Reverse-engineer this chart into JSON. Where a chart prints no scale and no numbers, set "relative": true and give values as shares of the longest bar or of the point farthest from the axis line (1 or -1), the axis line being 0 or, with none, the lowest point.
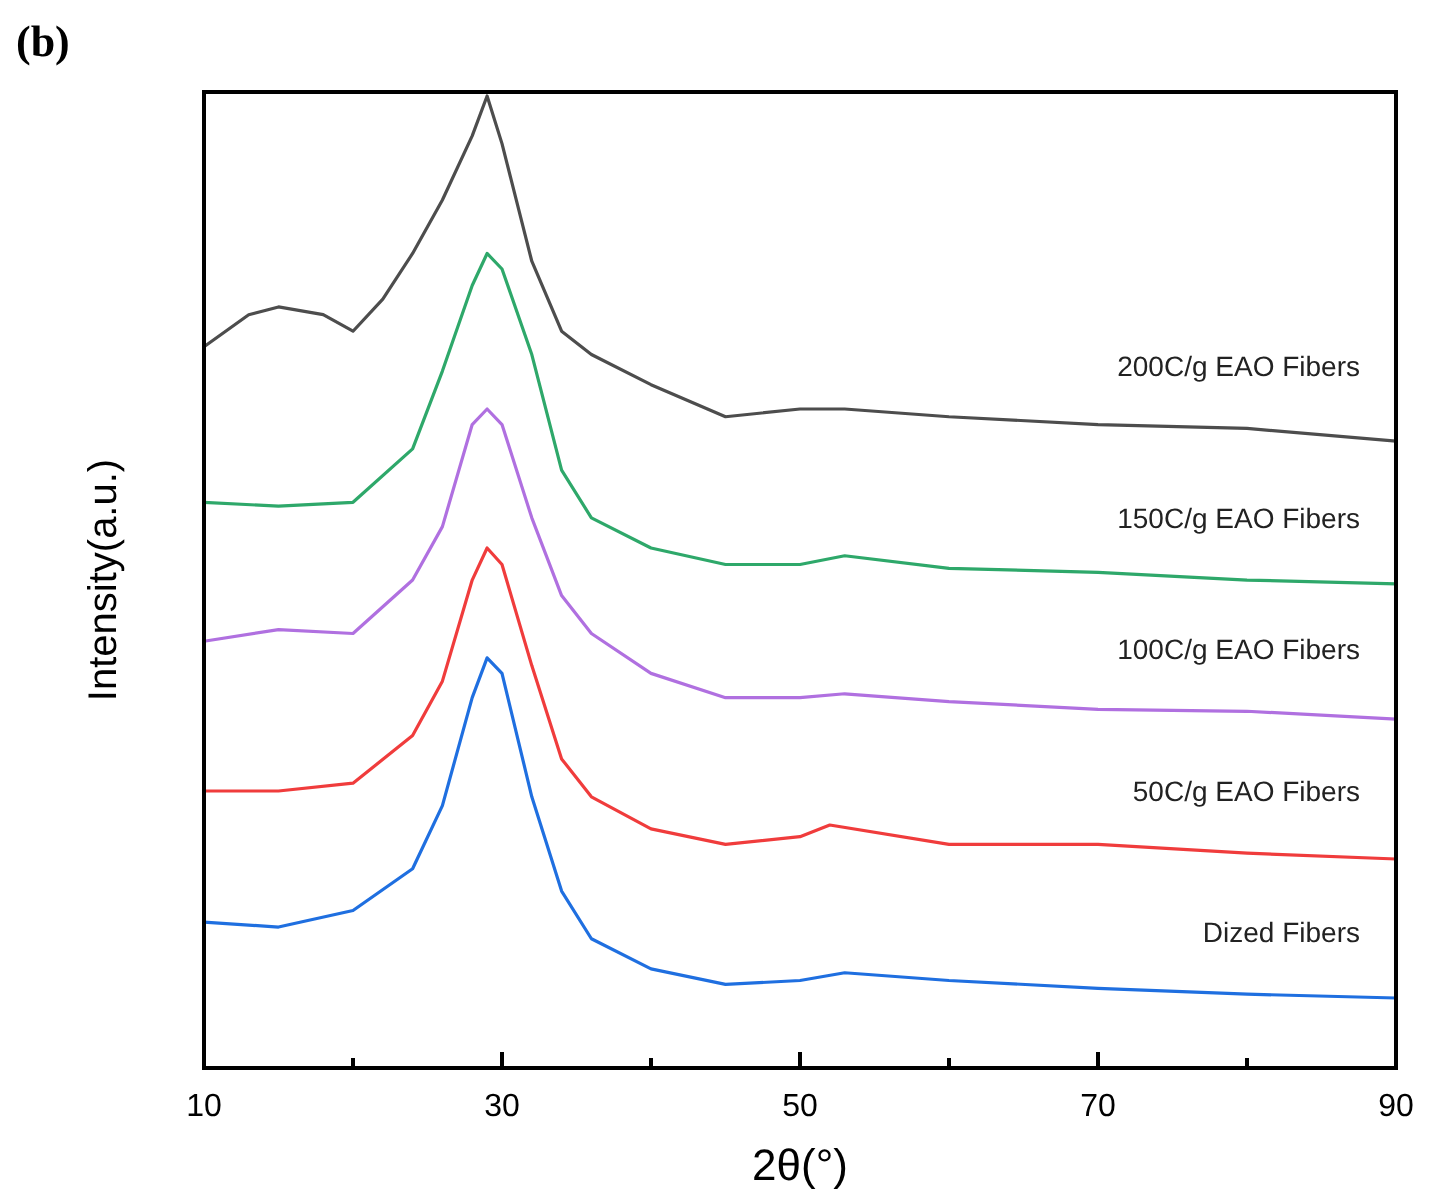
{
  "chart_data": {
    "type": "line",
    "relative": true,
    "xlabel": "2θ(°)",
    "ylabel": "Intensity(a.u.)",
    "annotations": [
      "(b)"
    ],
    "xlim": [
      10,
      90
    ],
    "xticks": [
      10,
      {
        "value": 20,
        "label": null
      },
      30,
      {
        "value": 40,
        "label": null
      },
      50,
      {
        "value": 60,
        "label": null
      },
      70,
      {
        "value": 80,
        "label": null
      },
      90
    ],
    "line_style": "solid",
    "marker": "none",
    "series": [
      {
        "name": "200C/g EAO Fibers",
        "color": "#4d4d4d",
        "x": [
          10,
          13,
          15,
          18,
          20,
          22,
          24,
          26,
          28,
          29,
          30,
          32,
          34,
          36,
          40,
          45,
          50,
          53,
          60,
          70,
          80,
          90
        ],
        "values": [
          0.742,
          0.775,
          0.783,
          0.775,
          0.758,
          0.791,
          0.838,
          0.893,
          0.959,
          1,
          0.951,
          0.83,
          0.758,
          0.734,
          0.703,
          0.67,
          0.678,
          0.678,
          0.67,
          0.662,
          0.658,
          0.645
        ]
      },
      {
        "name": "150C/g EAO Fibers",
        "color": "#2ea86a",
        "x": [
          10,
          15,
          20,
          24,
          26,
          28,
          29,
          30,
          32,
          34,
          36,
          40,
          45,
          50,
          53,
          60,
          70,
          80,
          90
        ],
        "values": [
          0.582,
          0.578,
          0.582,
          0.637,
          0.717,
          0.805,
          0.838,
          0.822,
          0.734,
          0.615,
          0.566,
          0.535,
          0.518,
          0.518,
          0.527,
          0.514,
          0.51,
          0.502,
          0.498
        ]
      },
      {
        "name": "100C/g EAO Fibers",
        "color": "#b070e0",
        "x": [
          10,
          15,
          20,
          24,
          26,
          28,
          29,
          30,
          32,
          34,
          36,
          40,
          45,
          50,
          53,
          60,
          70,
          80,
          90
        ],
        "values": [
          0.439,
          0.451,
          0.447,
          0.502,
          0.557,
          0.662,
          0.678,
          0.662,
          0.566,
          0.486,
          0.447,
          0.406,
          0.381,
          0.381,
          0.385,
          0.377,
          0.369,
          0.367,
          0.359
        ]
      },
      {
        "name": "50C/g EAO Fibers",
        "color": "#f03c3c",
        "x": [
          10,
          15,
          20,
          24,
          26,
          28,
          29,
          30,
          32,
          34,
          36,
          40,
          45,
          50,
          52,
          60,
          70,
          80,
          90
        ],
        "values": [
          0.285,
          0.285,
          0.293,
          0.342,
          0.398,
          0.502,
          0.535,
          0.518,
          0.414,
          0.318,
          0.279,
          0.246,
          0.23,
          0.238,
          0.25,
          0.23,
          0.23,
          0.221,
          0.215
        ]
      },
      {
        "name": "Dized Fibers",
        "color": "#1f6fe0",
        "x": [
          10,
          15,
          20,
          24,
          26,
          28,
          29,
          30,
          32,
          34,
          36,
          40,
          45,
          50,
          53,
          60,
          70,
          80,
          90
        ],
        "values": [
          0.15,
          0.145,
          0.162,
          0.205,
          0.27,
          0.381,
          0.422,
          0.406,
          0.279,
          0.182,
          0.133,
          0.102,
          0.086,
          0.09,
          0.098,
          0.09,
          0.082,
          0.076,
          0.072
        ]
      }
    ]
  }
}
